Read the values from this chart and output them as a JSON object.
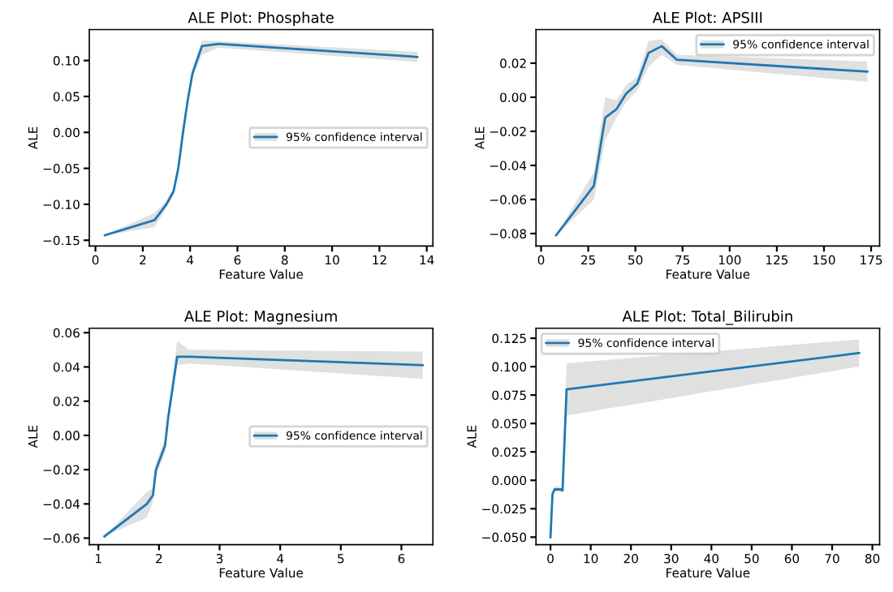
{
  "chart_data": [
    {
      "type": "line",
      "title": "ALE Plot: Phosphate",
      "xlabel": "Feature Value",
      "ylabel": "ALE",
      "legend": "right",
      "grid": false,
      "xlim": [
        -0.26,
        14.26
      ],
      "xticks": [
        0,
        2,
        4,
        6,
        8,
        10,
        12,
        14
      ],
      "ylim": [
        -0.158,
        0.143
      ],
      "yticks": [
        {
          "value": -0.15,
          "label": "−0.15"
        },
        {
          "value": -0.1,
          "label": "−0.10"
        },
        {
          "value": -0.05,
          "label": "−0.05"
        },
        {
          "value": 0,
          "label": "0.00"
        },
        {
          "value": 0.05,
          "label": "0.05"
        },
        {
          "value": 0.1,
          "label": "0.10"
        }
      ],
      "series": [
        {
          "name": "95% confidence interval",
          "color": "#1f77b4",
          "x": [
            0.4,
            2.5,
            3.0,
            3.3,
            3.5,
            3.7,
            3.9,
            4.1,
            4.5,
            5.2,
            13.6
          ],
          "values": [
            -0.143,
            -0.122,
            -0.1,
            -0.082,
            -0.05,
            0.0,
            0.045,
            0.082,
            0.12,
            0.123,
            0.105
          ],
          "lower": [
            -0.143,
            -0.132,
            -0.105,
            -0.087,
            -0.056,
            -0.006,
            0.039,
            0.076,
            0.108,
            0.118,
            0.098
          ],
          "upper": [
            -0.143,
            -0.112,
            -0.095,
            -0.077,
            -0.044,
            0.006,
            0.051,
            0.088,
            0.128,
            0.127,
            0.112
          ]
        }
      ]
    },
    {
      "type": "line",
      "title": "ALE Plot: APSIII",
      "xlabel": "Feature Value",
      "ylabel": "ALE",
      "legend": "top right",
      "grid": false,
      "xlim": [
        -2.7,
        179.5
      ],
      "xticks": [
        0,
        25,
        50,
        75,
        100,
        125,
        150,
        175
      ],
      "ylim": [
        -0.0873,
        0.0397
      ],
      "yticks": [
        {
          "value": -0.08,
          "label": "−0.08"
        },
        {
          "value": -0.06,
          "label": "−0.06"
        },
        {
          "value": -0.04,
          "label": "−0.04"
        },
        {
          "value": -0.02,
          "label": "−0.02"
        },
        {
          "value": 0,
          "label": "0.00"
        },
        {
          "value": 0.02,
          "label": "0.02"
        }
      ],
      "series": [
        {
          "name": "95% confidence interval",
          "color": "#1f77b4",
          "x": [
            8,
            28,
            34,
            40,
            45,
            51,
            57,
            64,
            72,
            173
          ],
          "values": [
            -0.081,
            -0.052,
            -0.012,
            -0.007,
            0.002,
            0.008,
            0.026,
            0.03,
            0.022,
            0.015
          ],
          "lower": [
            -0.081,
            -0.06,
            -0.025,
            -0.012,
            -0.003,
            0.004,
            0.018,
            0.025,
            0.019,
            0.009
          ],
          "upper": [
            -0.081,
            -0.044,
            0.0,
            -0.002,
            0.007,
            0.012,
            0.033,
            0.034,
            0.025,
            0.021
          ]
        }
      ]
    },
    {
      "type": "line",
      "title": "ALE Plot: Magnesium",
      "xlabel": "Feature Value",
      "ylabel": "ALE",
      "legend": "right",
      "grid": false,
      "xlim": [
        0.85,
        6.52
      ],
      "xticks": [
        1,
        2,
        3,
        4,
        5,
        6
      ],
      "ylim": [
        -0.0638,
        0.0626
      ],
      "yticks": [
        {
          "value": -0.06,
          "label": "−0.06"
        },
        {
          "value": -0.04,
          "label": "−0.04"
        },
        {
          "value": -0.02,
          "label": "−0.02"
        },
        {
          "value": 0,
          "label": "0.00"
        },
        {
          "value": 0.02,
          "label": "0.02"
        },
        {
          "value": 0.04,
          "label": "0.04"
        },
        {
          "value": 0.06,
          "label": "0.06"
        }
      ],
      "series": [
        {
          "name": "95% confidence interval",
          "color": "#1f77b4",
          "x": [
            1.1,
            1.8,
            1.9,
            1.95,
            2.1,
            2.15,
            2.3,
            2.5,
            6.35
          ],
          "values": [
            -0.059,
            -0.04,
            -0.035,
            -0.02,
            -0.006,
            0.01,
            0.046,
            0.046,
            0.041
          ],
          "lower": [
            -0.059,
            -0.048,
            -0.039,
            -0.024,
            -0.01,
            0.006,
            0.041,
            0.042,
            0.033
          ],
          "upper": [
            -0.059,
            -0.033,
            -0.031,
            -0.016,
            -0.002,
            0.014,
            0.055,
            0.05,
            0.049
          ]
        }
      ]
    },
    {
      "type": "line",
      "title": "ALE Plot: Total_Bilirubin",
      "xlabel": "Feature Value",
      "ylabel": "ALE",
      "legend": "top left",
      "grid": false,
      "xlim": [
        -3.6,
        81.8
      ],
      "xticks": [
        0,
        10,
        20,
        30,
        40,
        50,
        60,
        70,
        80
      ],
      "ylim": [
        -0.0566,
        0.1338
      ],
      "yticks": [
        {
          "value": -0.05,
          "label": "−0.050"
        },
        {
          "value": -0.025,
          "label": "−0.025"
        },
        {
          "value": 0,
          "label": "0.000"
        },
        {
          "value": 0.025,
          "label": "0.025"
        },
        {
          "value": 0.05,
          "label": "0.050"
        },
        {
          "value": 0.075,
          "label": "0.075"
        },
        {
          "value": 0.1,
          "label": "0.100"
        },
        {
          "value": 0.125,
          "label": "0.125"
        }
      ],
      "series": [
        {
          "name": "95% confidence interval",
          "color": "#1f77b4",
          "x": [
            0,
            0.5,
            1,
            2.5,
            3,
            4,
            76.7
          ],
          "values": [
            -0.05,
            -0.012,
            -0.008,
            -0.008,
            -0.009,
            0.08,
            0.112
          ],
          "lower": [
            -0.05,
            -0.014,
            -0.01,
            -0.01,
            -0.011,
            0.057,
            0.1
          ],
          "upper": [
            -0.05,
            -0.01,
            -0.005,
            -0.006,
            -0.007,
            0.103,
            0.124
          ]
        }
      ]
    }
  ]
}
